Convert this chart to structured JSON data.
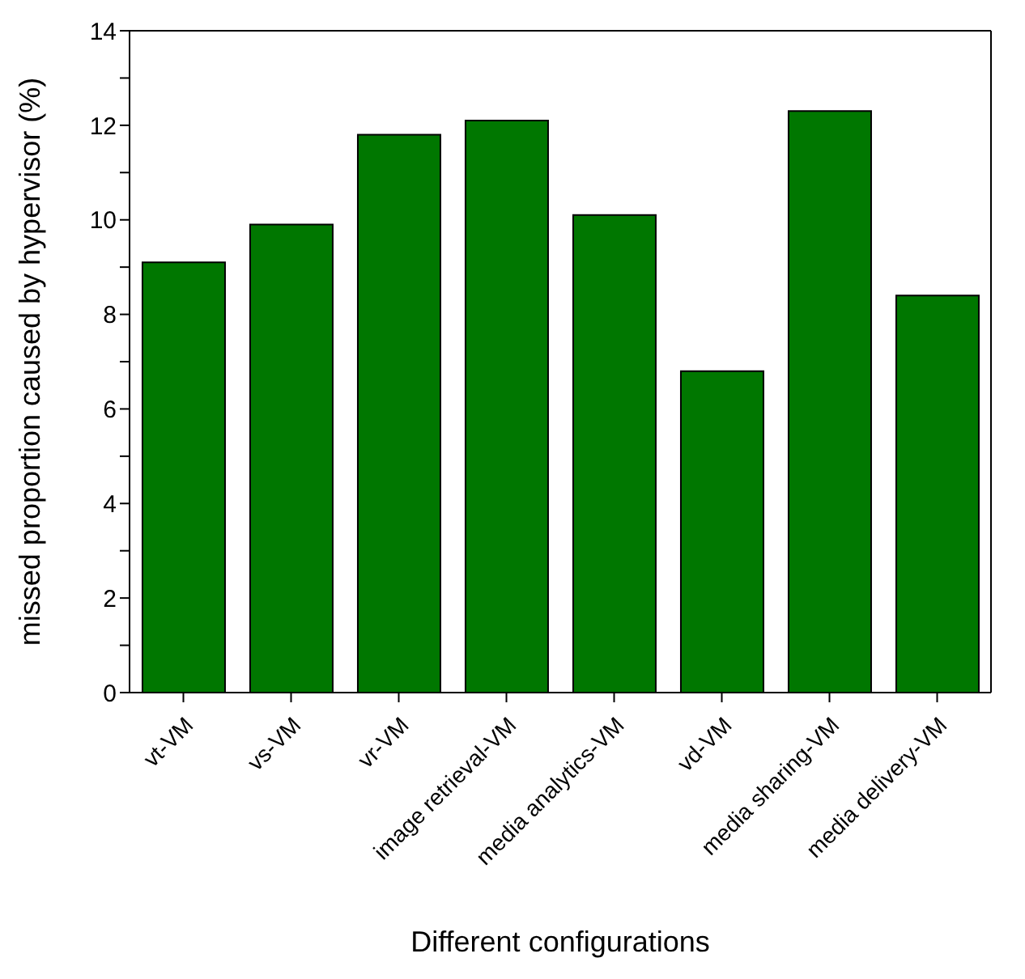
{
  "chart_data": {
    "type": "bar",
    "xlabel": "Different configurations",
    "ylabel": "missed proportion caused by hypervisor (%)",
    "categories": [
      "vt-VM",
      "vs-VM",
      "vr-VM",
      "image retrieval-VM",
      "media analytics-VM",
      "vd-VM",
      "media sharing-VM",
      "media delivery-VM"
    ],
    "values": [
      9.1,
      9.9,
      11.8,
      12.1,
      10.1,
      6.8,
      12.3,
      8.4
    ],
    "color": "#007700",
    "ylim": [
      0,
      14
    ],
    "yticks": [
      0,
      {
        "value": 1,
        "label": null
      },
      2,
      {
        "value": 3,
        "label": null
      },
      4,
      {
        "value": 5,
        "label": null
      },
      6,
      {
        "value": 7,
        "label": null
      },
      8,
      {
        "value": 9,
        "label": null
      },
      10,
      {
        "value": 11,
        "label": null
      },
      12,
      {
        "value": 13,
        "label": null
      },
      14
    ],
    "grid": false,
    "legend": false
  }
}
